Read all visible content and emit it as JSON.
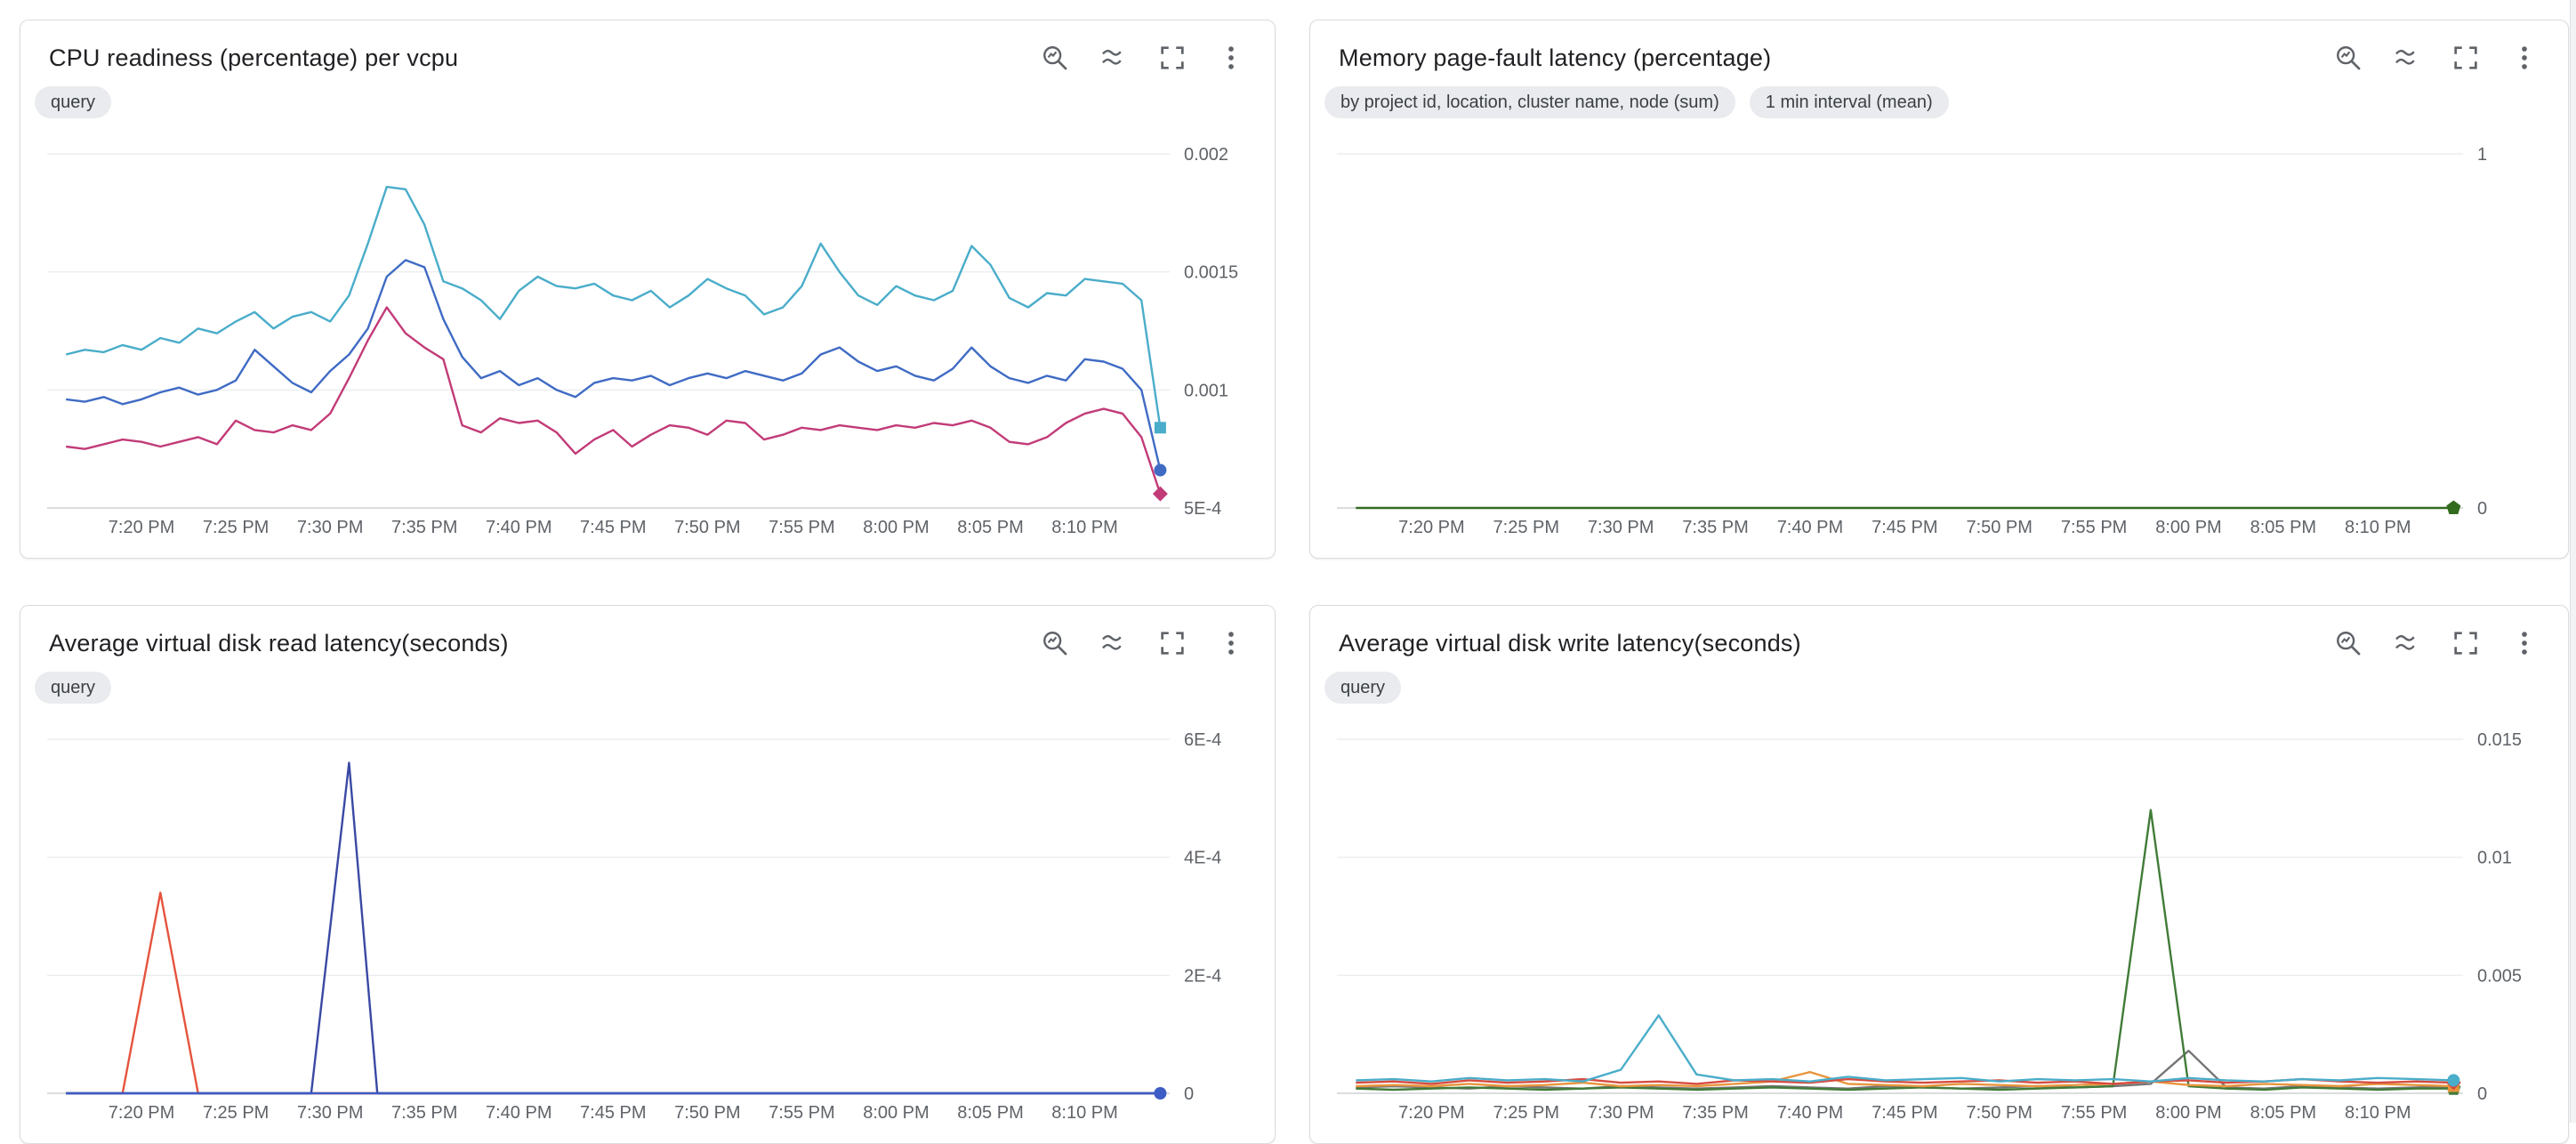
{
  "toolbar_icon_names": [
    "zoom-chart-icon",
    "waves-icon",
    "fullscreen-icon",
    "more-options-icon"
  ],
  "panels": [
    {
      "title": "CPU readiness (percentage) per vcpu",
      "chips": [
        "query"
      ]
    },
    {
      "title": "Memory page-fault latency (percentage)",
      "chips": [
        "by project id, location, cluster name, node (sum)",
        "1 min interval (mean)"
      ]
    },
    {
      "title": "Average virtual disk read latency(seconds)",
      "chips": [
        "query"
      ]
    },
    {
      "title": "Average virtual disk write latency(seconds)",
      "chips": [
        "query"
      ]
    }
  ],
  "chart_data": [
    {
      "type": "line",
      "title": "CPU readiness (percentage) per vcpu",
      "xlabel": "",
      "ylabel": "",
      "legend": "none",
      "grid": "horizontal-only",
      "y_axis_side": "right",
      "x_unit": "minutes since 7:15 PM",
      "xlim": [
        0,
        59.5
      ],
      "ylim": [
        0.0005,
        0.002
      ],
      "y_ticks": [
        {
          "v": 0.0005,
          "label": "5E-4"
        },
        {
          "v": 0.001,
          "label": "0.001"
        },
        {
          "v": 0.0015,
          "label": "0.0015"
        },
        {
          "v": 0.002,
          "label": "0.002"
        }
      ],
      "x_tick_start": 5,
      "x_tick_step": 5,
      "x_tick_labels": [
        "7:20 PM",
        "7:25 PM",
        "7:30 PM",
        "7:35 PM",
        "7:40 PM",
        "7:45 PM",
        "7:50 PM",
        "7:55 PM",
        "8:00 PM",
        "8:05 PM",
        "8:10 PM"
      ],
      "series": [
        {
          "name": "magenta",
          "color": "#c23b78",
          "marker": "diamond",
          "x0": 1,
          "dx": 1,
          "values": [
            0.00076,
            0.00075,
            0.00077,
            0.00079,
            0.00078,
            0.00076,
            0.00078,
            0.0008,
            0.00077,
            0.00087,
            0.00083,
            0.00082,
            0.00085,
            0.00083,
            0.0009,
            0.00105,
            0.00121,
            0.00135,
            0.00124,
            0.00118,
            0.00113,
            0.00085,
            0.00082,
            0.00088,
            0.00086,
            0.00087,
            0.00082,
            0.00073,
            0.00079,
            0.00083,
            0.00076,
            0.00081,
            0.00085,
            0.00084,
            0.00081,
            0.00087,
            0.00086,
            0.00079,
            0.00081,
            0.00084,
            0.00083,
            0.00085,
            0.00084,
            0.00083,
            0.00085,
            0.00084,
            0.00086,
            0.00085,
            0.00087,
            0.00084,
            0.00078,
            0.00077,
            0.0008,
            0.00086,
            0.0009,
            0.00092,
            0.0009,
            0.0008,
            0.00056
          ]
        },
        {
          "name": "blue",
          "color": "#3f6bc4",
          "marker": "circle",
          "x0": 1,
          "dx": 1,
          "values": [
            0.00096,
            0.00095,
            0.00097,
            0.00094,
            0.00096,
            0.00099,
            0.00101,
            0.00098,
            0.001,
            0.00104,
            0.00117,
            0.0011,
            0.00103,
            0.00099,
            0.00108,
            0.00115,
            0.00126,
            0.00148,
            0.00155,
            0.00152,
            0.0013,
            0.00114,
            0.00105,
            0.00108,
            0.00102,
            0.00105,
            0.001,
            0.00097,
            0.00103,
            0.00105,
            0.00104,
            0.00106,
            0.00102,
            0.00105,
            0.00107,
            0.00105,
            0.00108,
            0.00106,
            0.00104,
            0.00107,
            0.00115,
            0.00118,
            0.00112,
            0.00108,
            0.0011,
            0.00106,
            0.00104,
            0.00109,
            0.00118,
            0.0011,
            0.00105,
            0.00103,
            0.00106,
            0.00104,
            0.00113,
            0.00112,
            0.00109,
            0.001,
            0.00066
          ]
        },
        {
          "name": "cyan",
          "color": "#4aadca",
          "marker": "square",
          "x0": 1,
          "dx": 1,
          "values": [
            0.00115,
            0.00117,
            0.00116,
            0.00119,
            0.00117,
            0.00122,
            0.0012,
            0.00126,
            0.00124,
            0.00129,
            0.00133,
            0.00126,
            0.00131,
            0.00133,
            0.00129,
            0.0014,
            0.00162,
            0.00186,
            0.00185,
            0.0017,
            0.00146,
            0.00143,
            0.00138,
            0.0013,
            0.00142,
            0.00148,
            0.00144,
            0.00143,
            0.00145,
            0.0014,
            0.00138,
            0.00142,
            0.00135,
            0.0014,
            0.00147,
            0.00143,
            0.0014,
            0.00132,
            0.00135,
            0.00144,
            0.00162,
            0.0015,
            0.0014,
            0.00136,
            0.00144,
            0.0014,
            0.00138,
            0.00142,
            0.00161,
            0.00153,
            0.00139,
            0.00135,
            0.00141,
            0.0014,
            0.00147,
            0.00146,
            0.00145,
            0.00138,
            0.00084
          ]
        }
      ]
    },
    {
      "type": "line",
      "title": "Memory page-fault latency (percentage)",
      "xlabel": "",
      "ylabel": "",
      "legend": "none",
      "grid": "horizontal-only",
      "y_axis_side": "right",
      "x_unit": "minutes since 7:15 PM",
      "xlim": [
        0,
        59.5
      ],
      "ylim": [
        0,
        1
      ],
      "y_ticks": [
        {
          "v": 0,
          "label": "0"
        },
        {
          "v": 1,
          "label": "1"
        }
      ],
      "x_tick_start": 5,
      "x_tick_step": 5,
      "x_tick_labels": [
        "7:20 PM",
        "7:25 PM",
        "7:30 PM",
        "7:35 PM",
        "7:40 PM",
        "7:45 PM",
        "7:50 PM",
        "7:55 PM",
        "8:00 PM",
        "8:05 PM",
        "8:10 PM"
      ],
      "series": [
        {
          "name": "green",
          "color": "#336b1e",
          "marker": "pentagon",
          "x0": 1,
          "dx": 58,
          "values": [
            0,
            0
          ]
        }
      ]
    },
    {
      "type": "line",
      "title": "Average virtual disk read latency(seconds)",
      "xlabel": "",
      "ylabel": "",
      "legend": "none",
      "grid": "horizontal-only",
      "y_axis_side": "right",
      "x_unit": "minutes since 7:15 PM",
      "xlim": [
        0,
        59.5
      ],
      "ylim": [
        0,
        0.0006
      ],
      "y_ticks": [
        {
          "v": 0,
          "label": "0"
        },
        {
          "v": 0.0002,
          "label": "2E-4"
        },
        {
          "v": 0.0004,
          "label": "4E-4"
        },
        {
          "v": 0.0006,
          "label": "6E-4"
        }
      ],
      "x_tick_start": 5,
      "x_tick_step": 5,
      "x_tick_labels": [
        "7:20 PM",
        "7:25 PM",
        "7:30 PM",
        "7:35 PM",
        "7:40 PM",
        "7:45 PM",
        "7:50 PM",
        "7:55 PM",
        "8:00 PM",
        "8:05 PM",
        "8:10 PM"
      ],
      "series": [
        {
          "name": "orange-red",
          "color": "#e5543e",
          "points": [
            [
              1,
              0
            ],
            [
              4,
              0
            ],
            [
              6,
              0.00034
            ],
            [
              8,
              0
            ],
            [
              59,
              0
            ]
          ]
        },
        {
          "name": "indigo",
          "color": "#3949a3",
          "points": [
            [
              1,
              0
            ],
            [
              14,
              0
            ],
            [
              16,
              0.00056
            ],
            [
              17.5,
              0
            ],
            [
              59,
              0
            ]
          ]
        },
        {
          "name": "blue",
          "color": "#3d5cc5",
          "marker": "circle",
          "points": [
            [
              1,
              0
            ],
            [
              59,
              0
            ]
          ]
        }
      ]
    },
    {
      "type": "line",
      "title": "Average virtual disk write latency(seconds)",
      "xlabel": "",
      "ylabel": "",
      "legend": "none",
      "grid": "horizontal-only",
      "y_axis_side": "right",
      "x_unit": "minutes since 7:15 PM",
      "xlim": [
        0,
        59.5
      ],
      "ylim": [
        0,
        0.015
      ],
      "y_ticks": [
        {
          "v": 0,
          "label": "0"
        },
        {
          "v": 0.005,
          "label": "0.005"
        },
        {
          "v": 0.01,
          "label": "0.01"
        },
        {
          "v": 0.015,
          "label": "0.015"
        }
      ],
      "x_tick_start": 5,
      "x_tick_step": 5,
      "x_tick_labels": [
        "7:20 PM",
        "7:25 PM",
        "7:30 PM",
        "7:35 PM",
        "7:40 PM",
        "7:45 PM",
        "7:50 PM",
        "7:55 PM",
        "8:00 PM",
        "8:05 PM",
        "8:10 PM"
      ],
      "series": [
        {
          "name": "gray",
          "color": "#757575",
          "x0": 1,
          "dx": 2,
          "values": [
            0.00025,
            0.0003,
            0.00025,
            0.0002,
            0.0003,
            0.00025,
            0.0002,
            0.0003,
            0.00025,
            0.0002,
            0.00025,
            0.0003,
            0.00025,
            0.0002,
            0.0003,
            0.00025,
            0.0002,
            0.00025,
            0.0003,
            0.00025,
            0.0003,
            0.0004,
            0.0018,
            0.00025,
            0.0002,
            0.0003,
            0.00025,
            0.0002,
            0.00025,
            0.0003
          ]
        },
        {
          "name": "green",
          "color": "#417b38",
          "marker": "pentagon",
          "x0": 1,
          "dx": 2,
          "values": [
            0.0002,
            0.00015,
            0.0002,
            0.00025,
            0.0002,
            0.00015,
            0.0002,
            0.00025,
            0.0002,
            0.00015,
            0.0002,
            0.00025,
            0.0002,
            0.00015,
            0.0002,
            0.00025,
            0.0002,
            0.00015,
            0.0002,
            0.00025,
            0.0003,
            0.012,
            0.0003,
            0.0002,
            0.00015,
            0.00025,
            0.0002,
            0.00015,
            0.0002,
            0.0002
          ]
        },
        {
          "name": "orange",
          "color": "#e8953c",
          "marker": "square",
          "x0": 1,
          "dx": 2,
          "values": [
            0.0003,
            0.00035,
            0.0003,
            0.0004,
            0.0003,
            0.00035,
            0.00045,
            0.0003,
            0.00035,
            0.0003,
            0.0004,
            0.0005,
            0.0009,
            0.0004,
            0.00035,
            0.0003,
            0.0004,
            0.00035,
            0.0003,
            0.00035,
            0.0004,
            0.0005,
            0.00035,
            0.0003,
            0.0004,
            0.00035,
            0.0003,
            0.0004,
            0.00035,
            0.0003
          ]
        },
        {
          "name": "red",
          "color": "#d64b3f",
          "marker": "diamond",
          "x0": 1,
          "dx": 2,
          "values": [
            0.00045,
            0.0005,
            0.0004,
            0.00055,
            0.00045,
            0.0005,
            0.0006,
            0.00045,
            0.0005,
            0.0004,
            0.00055,
            0.0005,
            0.00045,
            0.0006,
            0.0005,
            0.00045,
            0.0005,
            0.00055,
            0.00045,
            0.0005,
            0.0004,
            0.0005,
            0.00055,
            0.00045,
            0.0005,
            0.0006,
            0.0005,
            0.00045,
            0.0005,
            0.00045
          ]
        },
        {
          "name": "cyan",
          "color": "#4aadca",
          "marker": "circle",
          "x0": 1,
          "dx": 2,
          "values": [
            0.00055,
            0.0006,
            0.0005,
            0.00065,
            0.00055,
            0.0006,
            0.0005,
            0.001,
            0.0033,
            0.0008,
            0.00055,
            0.0006,
            0.0005,
            0.0007,
            0.00055,
            0.0006,
            0.00065,
            0.0005,
            0.0006,
            0.00055,
            0.0006,
            0.0005,
            0.00065,
            0.00055,
            0.0005,
            0.0006,
            0.00055,
            0.00065,
            0.0006,
            0.00055
          ]
        }
      ]
    }
  ]
}
